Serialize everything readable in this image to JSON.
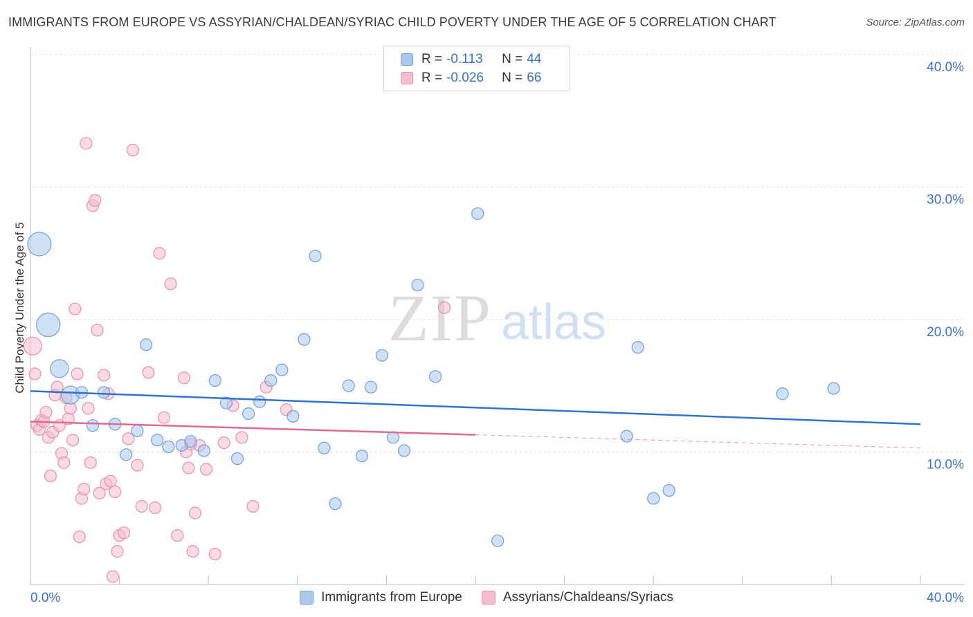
{
  "header": {
    "title": "IMMIGRANTS FROM EUROPE VS ASSYRIAN/CHALDEAN/SYRIAC CHILD POVERTY UNDER THE AGE OF 5 CORRELATION CHART",
    "source": "Source: ZipAtlas.com"
  },
  "watermark": {
    "zip": "ZIP",
    "atlas": "atlas"
  },
  "legend_top": {
    "rows": [
      {
        "r_label": "R =",
        "r_value": "-0.113",
        "n_label": "N =",
        "n_value": "44"
      },
      {
        "r_label": "R =",
        "r_value": "-0.026",
        "n_label": "N =",
        "n_value": "66"
      }
    ]
  },
  "legend_bottom": {
    "items": [
      {
        "label": "Immigrants from Europe"
      },
      {
        "label": "Assyrians/Chaldeans/Syriacs"
      }
    ]
  },
  "chart_data": {
    "type": "scatter",
    "title": "IMMIGRANTS FROM EUROPE VS ASSYRIAN/CHALDEAN/SYRIAC CHILD POVERTY UNDER THE AGE OF 5 CORRELATION CHART",
    "xlabel": "",
    "ylabel": "Child Poverty Under the Age of 5",
    "xlim": [
      0,
      40
    ],
    "ylim": [
      0,
      40
    ],
    "x_tick_labels": [
      {
        "value": 0,
        "label": "0.0%"
      },
      {
        "value": 40,
        "label": "40.0%"
      }
    ],
    "y_tick_labels": [
      {
        "value": 10,
        "label": "10.0%"
      },
      {
        "value": 20,
        "label": "20.0%"
      },
      {
        "value": 30,
        "label": "30.0%"
      },
      {
        "value": 40,
        "label": "40.0%"
      }
    ],
    "colors": {
      "blue_fill": "#aac8ec",
      "blue_stroke": "#6f9fdc",
      "blue_line": "#2f74cc",
      "pink_fill": "#f6bcd0",
      "pink_stroke": "#ea8fae",
      "pink_line": "#e06a92"
    },
    "series": [
      {
        "name": "Immigrants from Europe",
        "color": "blue",
        "points": [
          {
            "x": 0.4,
            "y": 25.7,
            "s": 3
          },
          {
            "x": 0.8,
            "y": 19.6,
            "s": 3
          },
          {
            "x": 1.3,
            "y": 16.3,
            "s": 2
          },
          {
            "x": 1.8,
            "y": 14.3,
            "s": 2
          },
          {
            "x": 2.3,
            "y": 14.5,
            "s": 1
          },
          {
            "x": 2.8,
            "y": 12.0,
            "s": 1
          },
          {
            "x": 3.3,
            "y": 14.5,
            "s": 1
          },
          {
            "x": 3.8,
            "y": 12.1,
            "s": 1
          },
          {
            "x": 4.3,
            "y": 9.8,
            "s": 1
          },
          {
            "x": 4.8,
            "y": 11.6,
            "s": 1
          },
          {
            "x": 5.2,
            "y": 18.1,
            "s": 1
          },
          {
            "x": 5.7,
            "y": 10.9,
            "s": 1
          },
          {
            "x": 6.2,
            "y": 10.4,
            "s": 1
          },
          {
            "x": 6.8,
            "y": 10.5,
            "s": 1
          },
          {
            "x": 7.2,
            "y": 10.8,
            "s": 1
          },
          {
            "x": 7.8,
            "y": 10.1,
            "s": 1
          },
          {
            "x": 8.3,
            "y": 15.4,
            "s": 1
          },
          {
            "x": 8.8,
            "y": 13.7,
            "s": 1
          },
          {
            "x": 9.3,
            "y": 9.5,
            "s": 1
          },
          {
            "x": 9.8,
            "y": 12.9,
            "s": 1
          },
          {
            "x": 10.3,
            "y": 13.8,
            "s": 1
          },
          {
            "x": 10.8,
            "y": 15.4,
            "s": 1
          },
          {
            "x": 11.3,
            "y": 16.2,
            "s": 1
          },
          {
            "x": 11.8,
            "y": 12.7,
            "s": 1
          },
          {
            "x": 12.3,
            "y": 18.5,
            "s": 1
          },
          {
            "x": 12.8,
            "y": 24.8,
            "s": 1
          },
          {
            "x": 13.2,
            "y": 10.3,
            "s": 1
          },
          {
            "x": 13.7,
            "y": 6.1,
            "s": 1
          },
          {
            "x": 14.3,
            "y": 15.0,
            "s": 1
          },
          {
            "x": 14.9,
            "y": 9.7,
            "s": 1
          },
          {
            "x": 15.3,
            "y": 14.9,
            "s": 1
          },
          {
            "x": 15.8,
            "y": 17.3,
            "s": 1
          },
          {
            "x": 16.3,
            "y": 11.1,
            "s": 1
          },
          {
            "x": 16.8,
            "y": 10.1,
            "s": 1
          },
          {
            "x": 17.4,
            "y": 22.6,
            "s": 1
          },
          {
            "x": 18.2,
            "y": 15.7,
            "s": 1
          },
          {
            "x": 20.1,
            "y": 28.0,
            "s": 1
          },
          {
            "x": 21.0,
            "y": 3.3,
            "s": 1
          },
          {
            "x": 26.8,
            "y": 11.2,
            "s": 1
          },
          {
            "x": 27.3,
            "y": 17.9,
            "s": 1
          },
          {
            "x": 28.0,
            "y": 6.5,
            "s": 1
          },
          {
            "x": 28.7,
            "y": 7.1,
            "s": 1
          },
          {
            "x": 33.8,
            "y": 14.4,
            "s": 1
          },
          {
            "x": 36.1,
            "y": 14.8,
            "s": 1
          }
        ],
        "trend": {
          "x0": 0,
          "y0": 14.6,
          "x1": 40,
          "y1": 12.1
        }
      },
      {
        "name": "Assyrians/Chaldeans/Syriacs",
        "color": "pink",
        "points": [
          {
            "x": 0.1,
            "y": 18.0,
            "s": 2
          },
          {
            "x": 0.2,
            "y": 15.9,
            "s": 1
          },
          {
            "x": 0.3,
            "y": 12.0,
            "s": 1
          },
          {
            "x": 0.4,
            "y": 11.7,
            "s": 1
          },
          {
            "x": 0.5,
            "y": 12.4,
            "s": 1
          },
          {
            "x": 0.6,
            "y": 12.3,
            "s": 1
          },
          {
            "x": 0.7,
            "y": 13.0,
            "s": 1
          },
          {
            "x": 0.8,
            "y": 11.1,
            "s": 1
          },
          {
            "x": 0.9,
            "y": 8.2,
            "s": 1
          },
          {
            "x": 1.0,
            "y": 11.5,
            "s": 1
          },
          {
            "x": 1.1,
            "y": 14.3,
            "s": 1
          },
          {
            "x": 1.2,
            "y": 14.9,
            "s": 1
          },
          {
            "x": 1.3,
            "y": 12.0,
            "s": 1
          },
          {
            "x": 1.4,
            "y": 9.9,
            "s": 1
          },
          {
            "x": 1.5,
            "y": 9.2,
            "s": 1
          },
          {
            "x": 1.6,
            "y": 14.1,
            "s": 1
          },
          {
            "x": 1.7,
            "y": 12.5,
            "s": 1
          },
          {
            "x": 1.8,
            "y": 13.3,
            "s": 1
          },
          {
            "x": 1.9,
            "y": 10.9,
            "s": 1
          },
          {
            "x": 2.0,
            "y": 20.8,
            "s": 1
          },
          {
            "x": 2.1,
            "y": 15.9,
            "s": 1
          },
          {
            "x": 2.2,
            "y": 3.6,
            "s": 1
          },
          {
            "x": 2.3,
            "y": 6.5,
            "s": 1
          },
          {
            "x": 2.4,
            "y": 7.2,
            "s": 1
          },
          {
            "x": 2.5,
            "y": 33.3,
            "s": 1
          },
          {
            "x": 2.6,
            "y": 13.3,
            "s": 1
          },
          {
            "x": 2.7,
            "y": 9.2,
            "s": 1
          },
          {
            "x": 2.8,
            "y": 28.6,
            "s": 1
          },
          {
            "x": 2.9,
            "y": 29.0,
            "s": 1
          },
          {
            "x": 3.0,
            "y": 19.2,
            "s": 1
          },
          {
            "x": 3.1,
            "y": 6.9,
            "s": 1
          },
          {
            "x": 3.3,
            "y": 15.8,
            "s": 1
          },
          {
            "x": 3.4,
            "y": 7.6,
            "s": 1
          },
          {
            "x": 3.5,
            "y": 14.4,
            "s": 1
          },
          {
            "x": 3.6,
            "y": 7.8,
            "s": 1
          },
          {
            "x": 3.7,
            "y": 0.6,
            "s": 1
          },
          {
            "x": 3.8,
            "y": 7.0,
            "s": 1
          },
          {
            "x": 3.9,
            "y": 2.5,
            "s": 1
          },
          {
            "x": 4.0,
            "y": 3.7,
            "s": 1
          },
          {
            "x": 4.2,
            "y": 3.9,
            "s": 1
          },
          {
            "x": 4.4,
            "y": 11.0,
            "s": 1
          },
          {
            "x": 4.6,
            "y": 32.8,
            "s": 1
          },
          {
            "x": 4.8,
            "y": 9.0,
            "s": 1
          },
          {
            "x": 5.0,
            "y": 5.9,
            "s": 1
          },
          {
            "x": 5.3,
            "y": 16.0,
            "s": 1
          },
          {
            "x": 5.6,
            "y": 5.8,
            "s": 1
          },
          {
            "x": 5.8,
            "y": 25.0,
            "s": 1
          },
          {
            "x": 6.0,
            "y": 12.6,
            "s": 1
          },
          {
            "x": 6.3,
            "y": 22.7,
            "s": 1
          },
          {
            "x": 6.6,
            "y": 3.7,
            "s": 1
          },
          {
            "x": 6.9,
            "y": 15.6,
            "s": 1
          },
          {
            "x": 7.0,
            "y": 10.0,
            "s": 1
          },
          {
            "x": 7.1,
            "y": 8.8,
            "s": 1
          },
          {
            "x": 7.2,
            "y": 10.6,
            "s": 1
          },
          {
            "x": 7.3,
            "y": 2.5,
            "s": 1
          },
          {
            "x": 7.4,
            "y": 5.4,
            "s": 1
          },
          {
            "x": 7.6,
            "y": 10.5,
            "s": 1
          },
          {
            "x": 7.9,
            "y": 8.7,
            "s": 1
          },
          {
            "x": 8.3,
            "y": 2.3,
            "s": 1
          },
          {
            "x": 8.7,
            "y": 10.7,
            "s": 1
          },
          {
            "x": 9.1,
            "y": 13.5,
            "s": 1
          },
          {
            "x": 9.5,
            "y": 11.1,
            "s": 1
          },
          {
            "x": 10.0,
            "y": 5.9,
            "s": 1
          },
          {
            "x": 10.6,
            "y": 14.9,
            "s": 1
          },
          {
            "x": 11.5,
            "y": 13.2,
            "s": 1
          },
          {
            "x": 18.6,
            "y": 20.9,
            "s": 1
          }
        ],
        "trend": {
          "x0": 0,
          "y0": 12.3,
          "x1": 20.0,
          "y1": 11.3,
          "dash_x1": 40,
          "dash_y1": 10.3
        }
      }
    ]
  }
}
